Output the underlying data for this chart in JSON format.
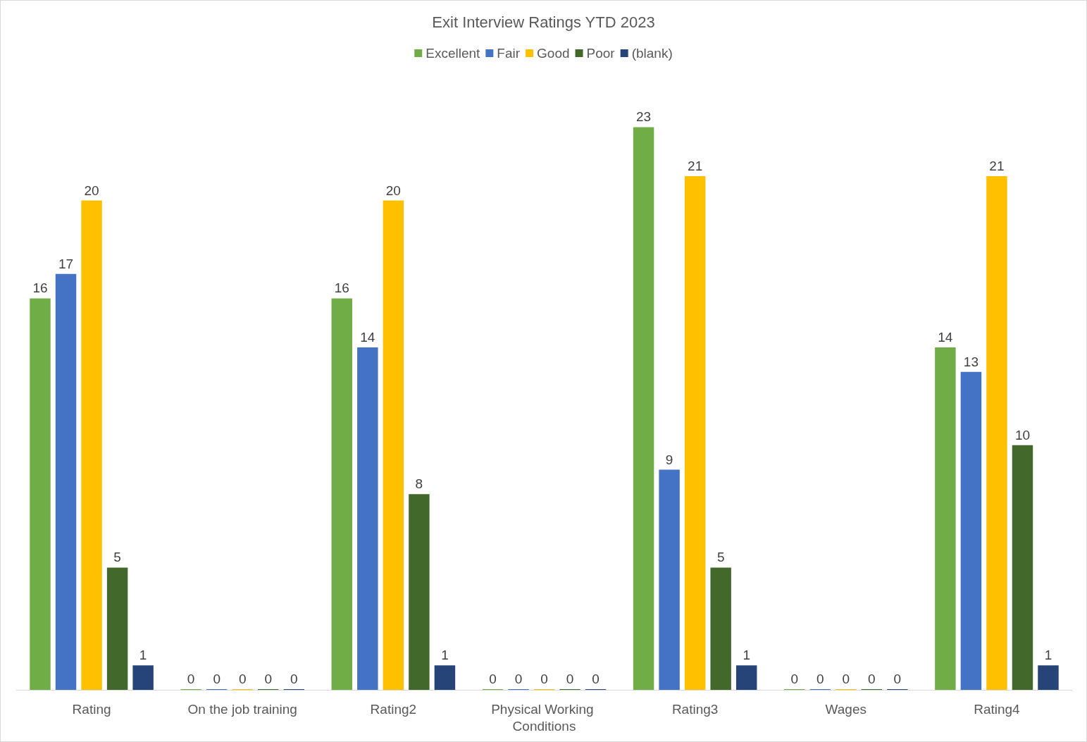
{
  "chart_data": {
    "type": "bar",
    "title": "Exit Interview Ratings YTD 2023",
    "categories": [
      "Rating",
      "On the job training",
      "Rating2",
      "Physical Working Conditions",
      "Rating3",
      "Wages",
      "Rating4"
    ],
    "series": [
      {
        "name": "Excellent",
        "color": "#70ad47",
        "values": [
          16,
          0,
          16,
          0,
          23,
          0,
          14
        ]
      },
      {
        "name": "Fair",
        "color": "#4472c4",
        "values": [
          17,
          0,
          14,
          0,
          9,
          0,
          13
        ]
      },
      {
        "name": "Good",
        "color": "#ffc000",
        "values": [
          20,
          0,
          20,
          0,
          21,
          0,
          21
        ]
      },
      {
        "name": "Poor",
        "color": "#43682b",
        "values": [
          5,
          0,
          8,
          0,
          5,
          0,
          10
        ]
      },
      {
        "name": "(blank)",
        "color": "#264478",
        "values": [
          1,
          0,
          1,
          0,
          1,
          0,
          1
        ]
      }
    ],
    "data_labels": true,
    "legend": "top",
    "grid": false,
    "tick_labels": "x"
  }
}
